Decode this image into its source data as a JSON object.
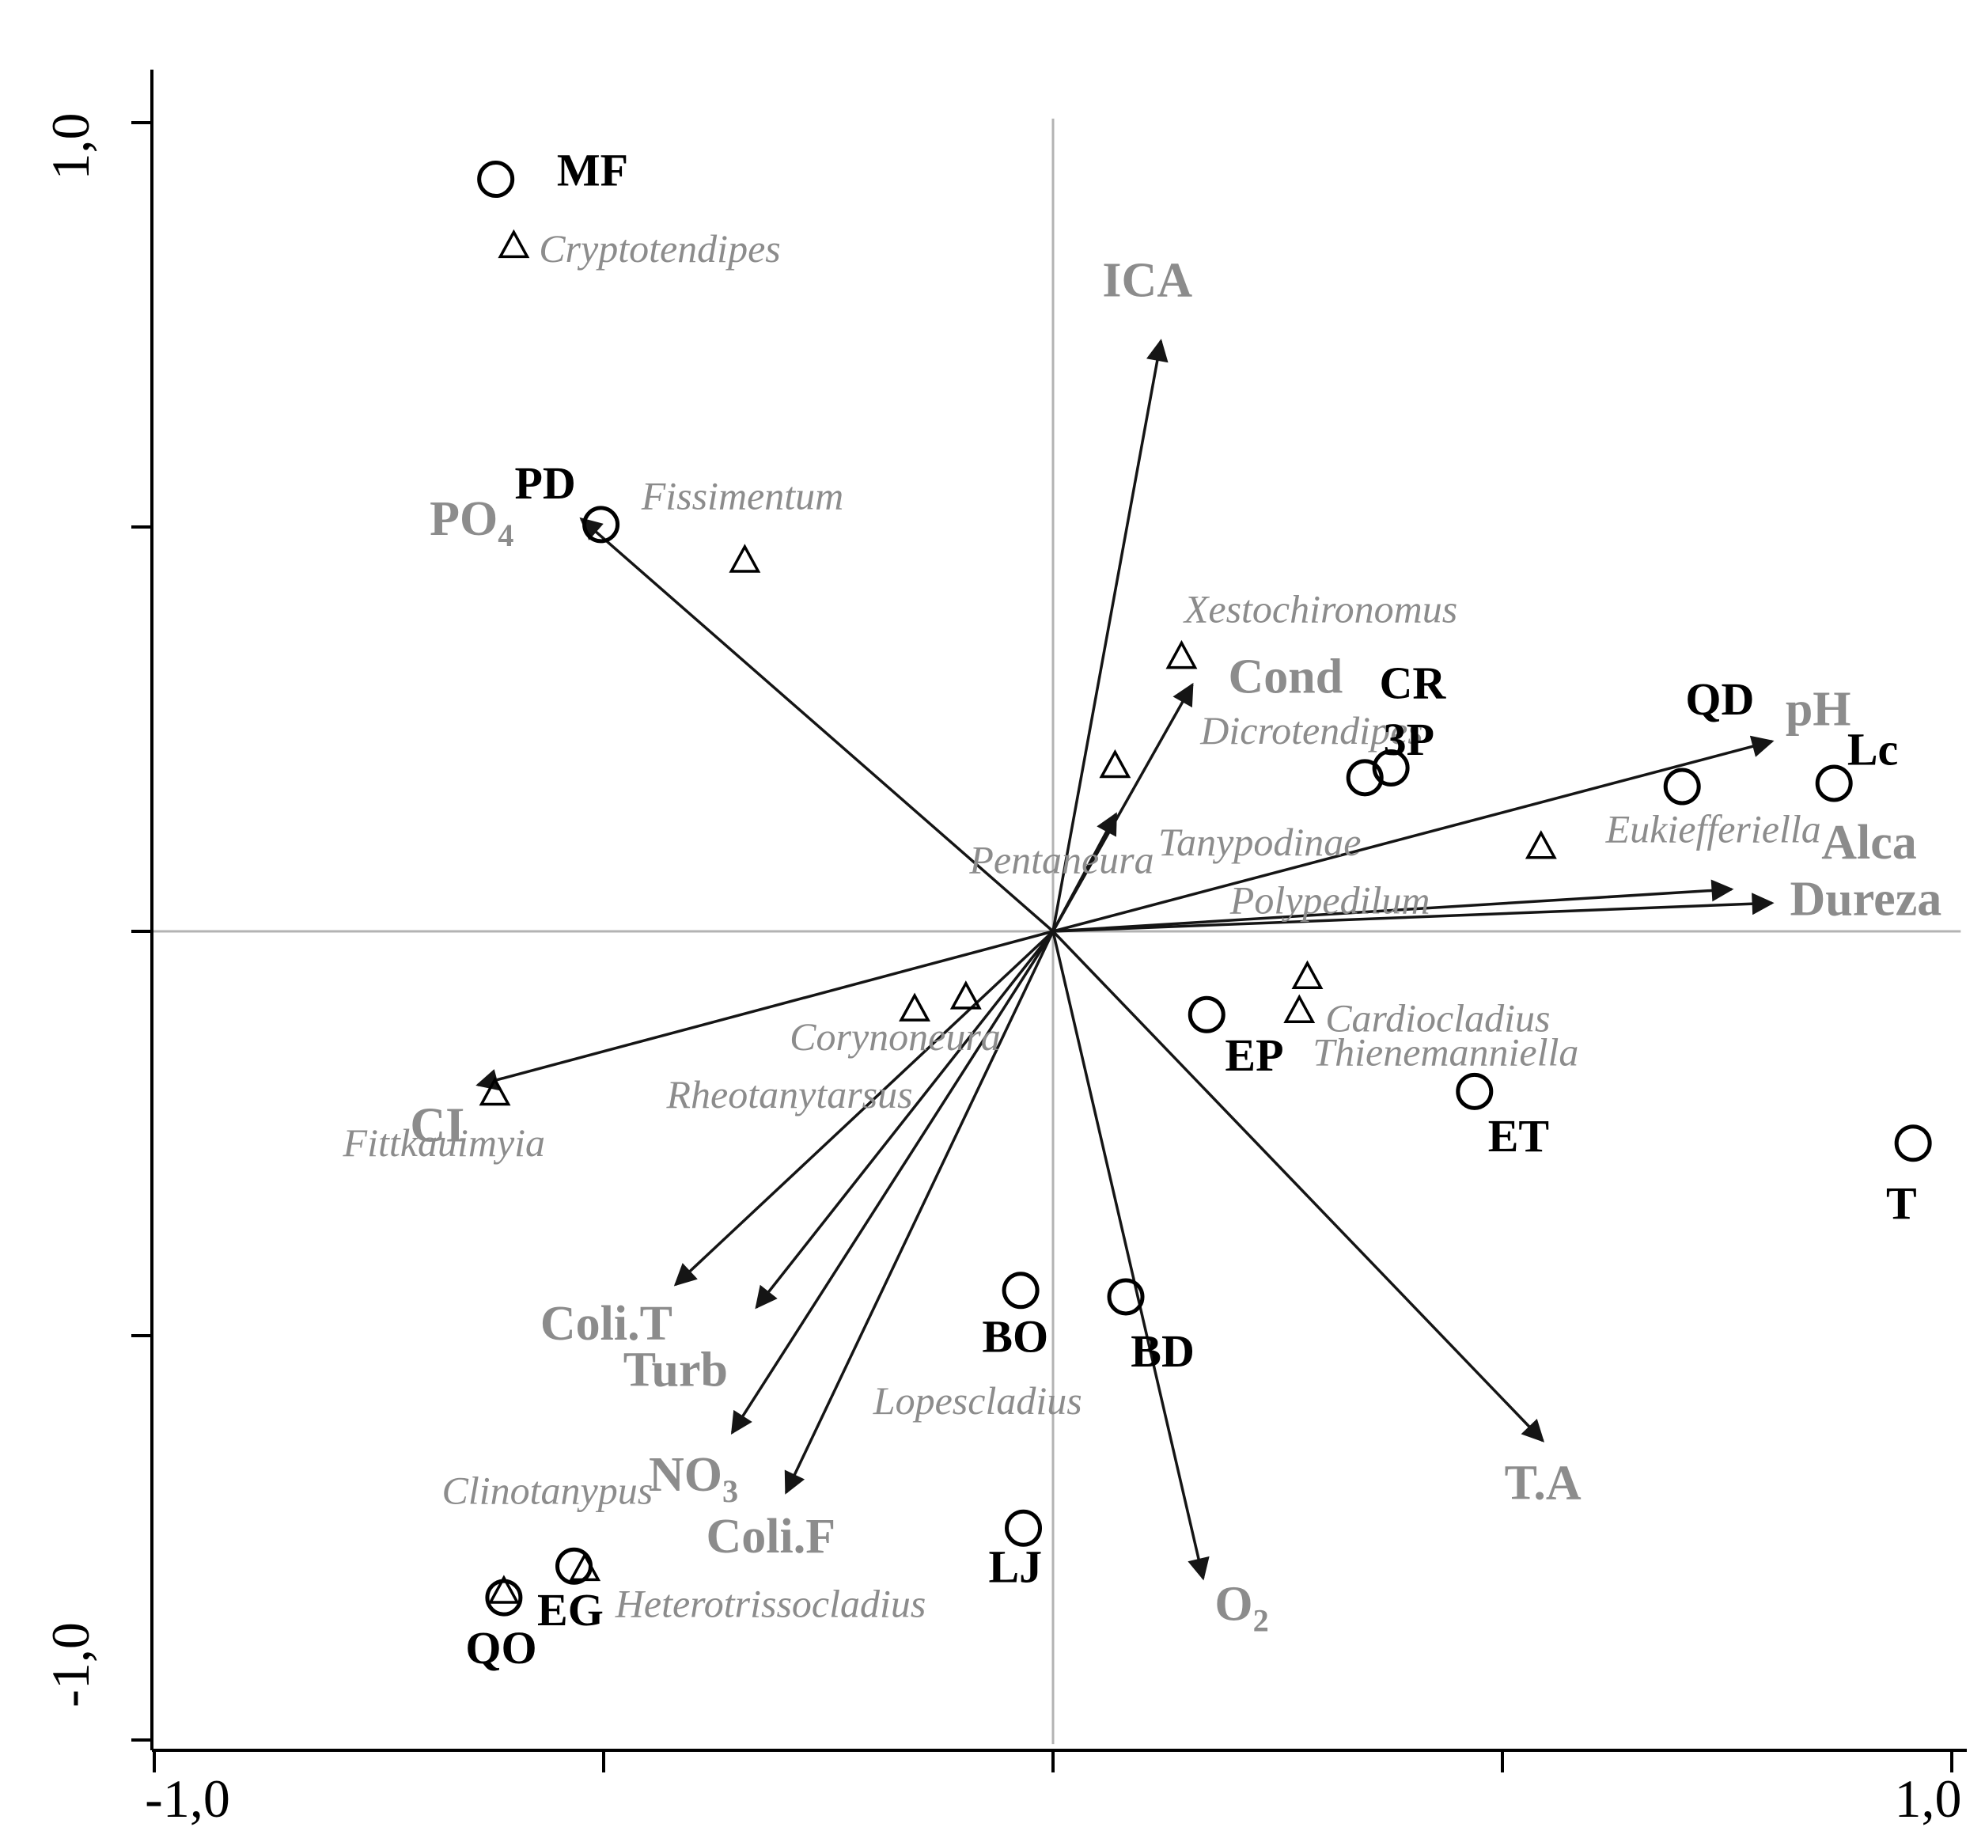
{
  "figure": {
    "description": "CCA ordination biplot with environmental variable arrows, site points (open circles) and chironomid taxa points (open triangles)"
  },
  "chart_data": {
    "type": "scatter",
    "subtype": "ordination-biplot",
    "title": "",
    "xlabel": "",
    "ylabel": "",
    "xlim": [
      -1.0,
      1.0
    ],
    "ylim": [
      -1.0,
      1.0
    ],
    "grid": "origin-crosshair-only",
    "legend": "none",
    "colors": {
      "env_label": "#8c8c8c",
      "species_label": "#8c8c8c",
      "site_label": "#000000",
      "crosshair": "#b3b3b3",
      "arrow": "#151515"
    },
    "x_tick_labels": [
      {
        "v": -1,
        "label": "-1,0"
      },
      {
        "v": -0.5,
        "label": ""
      },
      {
        "v": 0,
        "label": ""
      },
      {
        "v": 0.5,
        "label": ""
      },
      {
        "v": 1,
        "label": "1,0"
      }
    ],
    "y_tick_labels": [
      {
        "v": -1,
        "label": "-1,0"
      },
      {
        "v": -0.5,
        "label": ""
      },
      {
        "v": 0,
        "label": ""
      },
      {
        "v": 0.5,
        "label": ""
      },
      {
        "v": 1,
        "label": "1,0"
      }
    ],
    "env_arrows": [
      {
        "label": "ICA",
        "x": 0.12,
        "y": 0.73,
        "lx": 0.105,
        "ly": 0.785,
        "anchor": "middle"
      },
      {
        "label": "PO_4",
        "x": -0.525,
        "y": 0.51,
        "lx": -0.6,
        "ly": 0.49,
        "anchor": "end"
      },
      {
        "label": "Cond",
        "x": 0.155,
        "y": 0.305,
        "lx": 0.195,
        "ly": 0.295,
        "anchor": "start"
      },
      {
        "label": "",
        "x": 0.07,
        "y": 0.145,
        "lx": 0,
        "ly": 0,
        "anchor": "start"
      },
      {
        "label": "pH",
        "x": 0.8,
        "y": 0.235,
        "lx": 0.815,
        "ly": 0.255,
        "anchor": "start"
      },
      {
        "label": "Alca",
        "x": 0.755,
        "y": 0.052,
        "lx": 0.855,
        "ly": 0.09,
        "anchor": "start"
      },
      {
        "label": "Dureza",
        "x": 0.8,
        "y": 0.035,
        "lx": 0.82,
        "ly": 0.02,
        "anchor": "start"
      },
      {
        "label": "CI",
        "x": -0.64,
        "y": -0.19,
        "lx": -0.685,
        "ly": -0.26,
        "anchor": "middle"
      },
      {
        "label": "Coli.T",
        "x": -0.42,
        "y": -0.437,
        "lx": -0.497,
        "ly": -0.505,
        "anchor": "middle"
      },
      {
        "label": "Turb",
        "x": -0.33,
        "y": -0.465,
        "lx": -0.42,
        "ly": -0.562,
        "anchor": "middle"
      },
      {
        "label": "NO_3",
        "x": -0.357,
        "y": -0.62,
        "lx": -0.4,
        "ly": -0.692,
        "anchor": "middle"
      },
      {
        "label": "Coli.F",
        "x": -0.297,
        "y": -0.694,
        "lx": -0.314,
        "ly": -0.768,
        "anchor": "middle"
      },
      {
        "label": "T.A",
        "x": 0.545,
        "y": -0.63,
        "lx": 0.545,
        "ly": -0.702,
        "anchor": "middle"
      },
      {
        "label": "O_2",
        "x": 0.167,
        "y": -0.8,
        "lx": 0.21,
        "ly": -0.852,
        "anchor": "middle"
      }
    ],
    "sites": [
      {
        "label": "MF",
        "x": -0.62,
        "y": 0.93,
        "lx": -0.552,
        "ly": 0.922,
        "anchor": "start"
      },
      {
        "label": "PD",
        "x": -0.503,
        "y": 0.503,
        "lx": -0.565,
        "ly": 0.535,
        "anchor": "middle"
      },
      {
        "label": "CR",
        "x": 0.347,
        "y": 0.19,
        "lx": 0.4,
        "ly": 0.288,
        "anchor": "middle"
      },
      {
        "label": "3P",
        "x": 0.376,
        "y": 0.202,
        "lx": 0.396,
        "ly": 0.218,
        "anchor": "middle"
      },
      {
        "label": "QD",
        "x": 0.7,
        "y": 0.179,
        "lx": 0.742,
        "ly": 0.268,
        "anchor": "middle"
      },
      {
        "label": "Lc",
        "x": 0.869,
        "y": 0.183,
        "lx": 0.912,
        "ly": 0.206,
        "anchor": "middle"
      },
      {
        "label": "EP",
        "x": 0.171,
        "y": -0.103,
        "lx": 0.224,
        "ly": -0.172,
        "anchor": "middle"
      },
      {
        "label": "ET",
        "x": 0.469,
        "y": -0.198,
        "lx": 0.518,
        "ly": -0.272,
        "anchor": "middle"
      },
      {
        "label": "T",
        "x": 0.957,
        "y": -0.262,
        "lx": 0.944,
        "ly": -0.355,
        "anchor": "middle"
      },
      {
        "label": "BO",
        "x": -0.036,
        "y": -0.444,
        "lx": -0.042,
        "ly": -0.52,
        "anchor": "middle"
      },
      {
        "label": "BD",
        "x": 0.081,
        "y": -0.452,
        "lx": 0.122,
        "ly": -0.538,
        "anchor": "middle"
      },
      {
        "label": "LJ",
        "x": -0.033,
        "y": -0.738,
        "lx": -0.042,
        "ly": -0.805,
        "anchor": "middle"
      },
      {
        "label": "EG",
        "x": -0.533,
        "y": -0.785,
        "lx": -0.537,
        "ly": -0.858,
        "anchor": "middle"
      },
      {
        "label": "QO",
        "x": -0.611,
        "y": -0.824,
        "lx": -0.614,
        "ly": -0.905,
        "anchor": "middle"
      }
    ],
    "species": [
      {
        "label": "Cryptotendipes",
        "marker": true,
        "x": -0.6,
        "y": 0.846,
        "lx": -0.572,
        "ly": 0.828,
        "anchor": "start"
      },
      {
        "label": "Fissimentum",
        "marker": true,
        "x": -0.343,
        "y": 0.457,
        "lx": -0.458,
        "ly": 0.522,
        "anchor": "start"
      },
      {
        "label": "Xestochironomus",
        "marker": true,
        "x": 0.143,
        "y": 0.338,
        "lx": 0.146,
        "ly": 0.382,
        "anchor": "start"
      },
      {
        "label": "Dicrotendipes",
        "marker": true,
        "x": 0.069,
        "y": 0.203,
        "lx": 0.164,
        "ly": 0.232,
        "anchor": "start"
      },
      {
        "label": "Pentaneura",
        "marker": false,
        "x": 0,
        "y": 0,
        "lx": -0.093,
        "ly": 0.072,
        "anchor": "start"
      },
      {
        "label": "Tanypodinae",
        "marker": false,
        "x": 0,
        "y": 0,
        "lx": 0.117,
        "ly": 0.094,
        "anchor": "start"
      },
      {
        "label": "Polypedilum",
        "marker": false,
        "x": 0,
        "y": 0,
        "lx": 0.197,
        "ly": 0.022,
        "anchor": "start"
      },
      {
        "label": "Eukiefferiella",
        "marker": true,
        "x": 0.543,
        "y": 0.103,
        "lx": 0.615,
        "ly": 0.11,
        "anchor": "start"
      },
      {
        "label": "Cardiocladius",
        "marker": true,
        "x": 0.283,
        "y": -0.058,
        "lx": 0.303,
        "ly": -0.124,
        "anchor": "start"
      },
      {
        "label": "Thienemanniella",
        "marker": true,
        "x": 0.274,
        "y": -0.1,
        "lx": 0.289,
        "ly": -0.166,
        "anchor": "start"
      },
      {
        "label": "Corynoneura",
        "marker": true,
        "x": -0.097,
        "y": -0.083,
        "lx": -0.293,
        "ly": -0.147,
        "anchor": "start"
      },
      {
        "label": "Rheotanytarsus",
        "marker": true,
        "x": -0.154,
        "y": -0.098,
        "lx": -0.43,
        "ly": -0.218,
        "anchor": "start"
      },
      {
        "label": "Fittkauimyia",
        "marker": true,
        "x": -0.621,
        "y": -0.202,
        "lx": -0.79,
        "ly": -0.278,
        "anchor": "start"
      },
      {
        "label": "Lopescladius",
        "marker": false,
        "x": 0,
        "y": 0,
        "lx": -0.2,
        "ly": -0.597,
        "anchor": "start"
      },
      {
        "label": "Clinotanypus",
        "marker": false,
        "x": 0,
        "y": 0,
        "lx": -0.68,
        "ly": -0.708,
        "anchor": "start"
      },
      {
        "label": "Heterotrissocladius",
        "marker": true,
        "x": -0.521,
        "y": -0.79,
        "lx": -0.487,
        "ly": -0.848,
        "anchor": "start"
      },
      {
        "label": "",
        "marker": true,
        "x": -0.611,
        "y": -0.818,
        "lx": 0,
        "ly": 0,
        "anchor": "start"
      }
    ]
  }
}
